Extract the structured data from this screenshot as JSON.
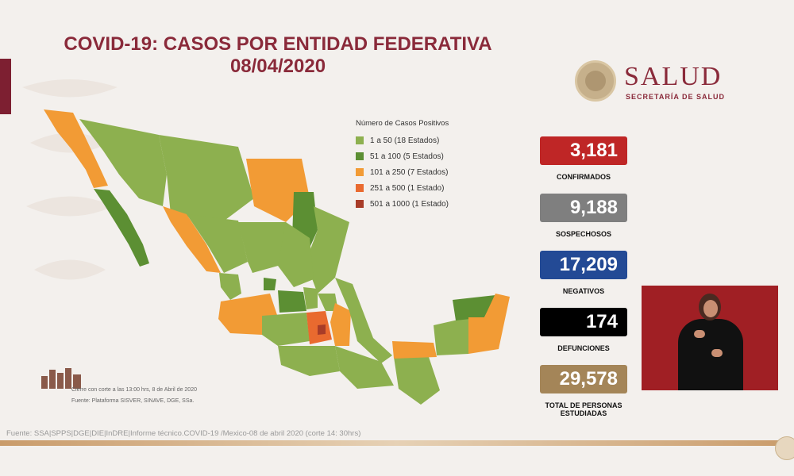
{
  "header": {
    "title_line1": "COVID-19: CASOS POR ENTIDAD FEDERATIVA",
    "title_line2": "08/04/2020"
  },
  "logo": {
    "name": "SALUD",
    "subtitle": "SECRETARÍA DE SALUD"
  },
  "legend": {
    "title": "Número de Casos Positivos",
    "items": [
      {
        "label": "1 a 50 (18 Estados)",
        "color": "#8db04f"
      },
      {
        "label": "51 a 100 (5 Estados)",
        "color": "#5c8f33"
      },
      {
        "label": "101 a 250 (7 Estados)",
        "color": "#f29b35"
      },
      {
        "label": "251 a 500 (1 Estado)",
        "color": "#e96a2f"
      },
      {
        "label": "501 a 1000 (1 Estado)",
        "color": "#a83c28"
      }
    ]
  },
  "stats": [
    {
      "value": "3,181",
      "label": "CONFIRMADOS",
      "color": "#bf2626"
    },
    {
      "value": "9,188",
      "label": "SOSPECHOSOS",
      "color": "#7f7f7f"
    },
    {
      "value": "17,209",
      "label": "NEGATIVOS",
      "color": "#234a95"
    },
    {
      "value": "174",
      "label": "DEFUNCIONES",
      "color": "#000000"
    },
    {
      "value": "29,578",
      "label": "TOTAL DE PERSONAS ESTUDIADAS",
      "color": "#a48558"
    }
  ],
  "notes": {
    "cutoff": "Cierre con corte a las 13:00 hrs, 8 de Abril de 2020",
    "source_small": "Fuente: Plataforma SISVER, SINAVE, DGE, SSa.",
    "footer_source": "Fuente: SSA|SPPS|DGE|DIE|InDRE|Informe técnico.COVID-19 /Mexico-08 de abril 2020 (corte 14: 30hrs)"
  },
  "colors": {
    "accent": "#8a2a3a",
    "map_green_light": "#8db04f",
    "map_green_dark": "#5c8f33",
    "map_orange": "#f29b35",
    "map_red": "#e96a2f"
  }
}
